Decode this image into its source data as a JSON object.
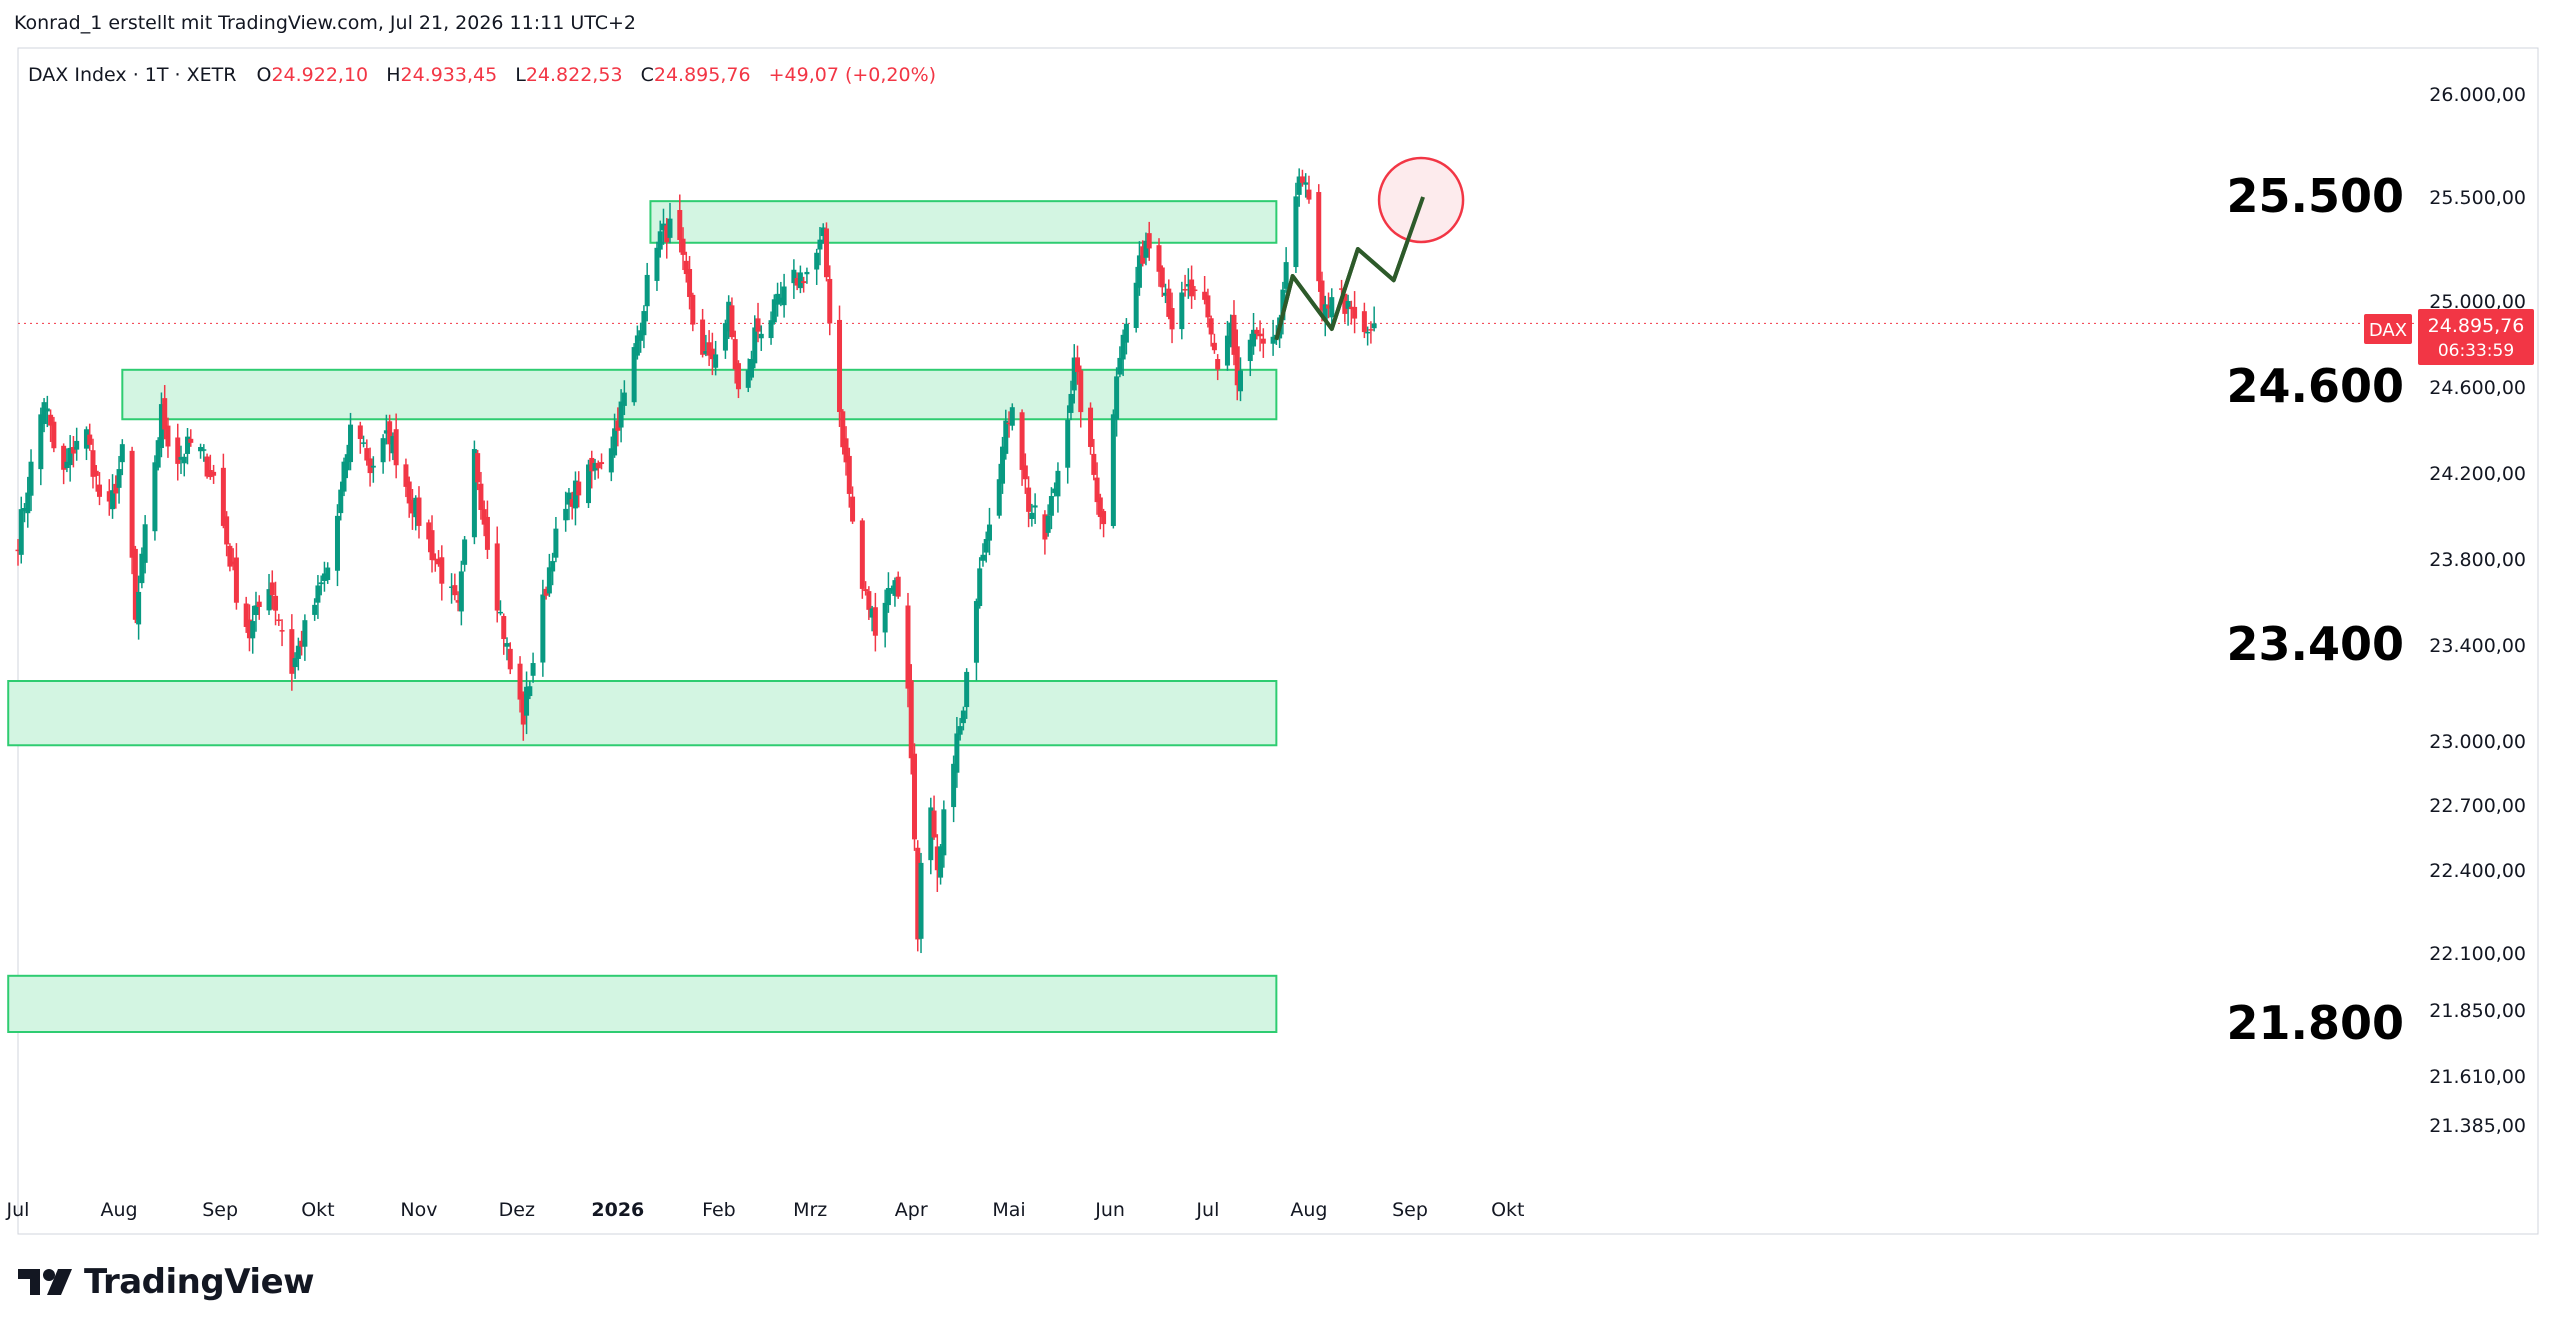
{
  "credit": "Konrad_1 erstellt mit TradingView.com, Jul 21, 2026 11:11 UTC+2",
  "brand": "TradingView",
  "legend": {
    "symbol": "DAX Index · 1T · XETR",
    "o_label": "O",
    "o": "24.922,10",
    "h_label": "H",
    "h": "24.933,45",
    "l_label": "L",
    "l": "24.822,53",
    "c_label": "C",
    "c": "24.895,76",
    "change": "+49,07 (+0,20%)"
  },
  "price_tag": {
    "symbol": "DAX",
    "price": "24.895,76",
    "countdown": "06:33:59"
  },
  "colors": {
    "up": "#089981",
    "down": "#f23645",
    "zone_fill": "#d3f5e2",
    "zone_stroke": "#2ecc71",
    "path": "#2d5a2a",
    "circle": "#f23645",
    "circle_fill": "#fde6e8"
  },
  "chart_data": {
    "type": "candlestick",
    "y_axis_ticks": [
      {
        "value": 26000,
        "label": "26.000,00"
      },
      {
        "value": 25500,
        "label": "25.500,00"
      },
      {
        "value": 25000,
        "label": "25.000,00"
      },
      {
        "value": 24600,
        "label": "24.600,00"
      },
      {
        "value": 24200,
        "label": "24.200,00"
      },
      {
        "value": 23800,
        "label": "23.800,00"
      },
      {
        "value": 23400,
        "label": "23.400,00"
      },
      {
        "value": 23000,
        "label": "23.000,00"
      },
      {
        "value": 22700,
        "label": "22.700,00"
      },
      {
        "value": 22400,
        "label": "22.400,00"
      },
      {
        "value": 22100,
        "label": "22.100,00"
      },
      {
        "value": 21850,
        "label": "21.850,00"
      },
      {
        "value": 21610,
        "label": "21.610,00"
      },
      {
        "value": 21385,
        "label": "21.385,00"
      }
    ],
    "x_axis_labels": [
      {
        "label": "Jul",
        "day": 0
      },
      {
        "label": "Aug",
        "day": 31
      },
      {
        "label": "Sep",
        "day": 62
      },
      {
        "label": "Okt",
        "day": 92
      },
      {
        "label": "Nov",
        "day": 123
      },
      {
        "label": "Dez",
        "day": 153
      },
      {
        "label": "2026",
        "day": 184,
        "bold": true
      },
      {
        "label": "Feb",
        "day": 215
      },
      {
        "label": "Mrz",
        "day": 243
      },
      {
        "label": "Apr",
        "day": 274
      },
      {
        "label": "Mai",
        "day": 304
      },
      {
        "label": "Jun",
        "day": 335
      },
      {
        "label": "Jul",
        "day": 365
      },
      {
        "label": "Aug",
        "day": 396
      },
      {
        "label": "Sep",
        "day": 427
      },
      {
        "label": "Okt",
        "day": 457
      }
    ],
    "zones": [
      {
        "from_day": 194,
        "to_day": 386,
        "low": 25280,
        "high": 25480
      },
      {
        "from_day": 32,
        "to_day": 386,
        "low": 24450,
        "high": 24680
      },
      {
        "from_day": -3,
        "to_day": 386,
        "low": 22980,
        "high": 23250
      },
      {
        "from_day": -3,
        "to_day": 386,
        "low": 21770,
        "high": 22000
      }
    ],
    "level_labels": [
      {
        "text": "25.500",
        "value": 25500
      },
      {
        "text": "24.600",
        "value": 24600
      },
      {
        "text": "23.400",
        "value": 23400
      },
      {
        "text": "21.800",
        "value": 21800
      }
    ],
    "projection": [
      {
        "day": 386,
        "value": 24820
      },
      {
        "day": 391,
        "value": 25120
      },
      {
        "day": 403,
        "value": 24870
      },
      {
        "day": 411,
        "value": 25250
      },
      {
        "day": 422,
        "value": 25100
      },
      {
        "day": 431,
        "value": 25500
      }
    ],
    "target": {
      "day": 431,
      "value": 25500
    },
    "current": 24895.76,
    "waypoints": [
      [
        0,
        23900
      ],
      [
        8,
        24550
      ],
      [
        13,
        24150
      ],
      [
        20,
        24450
      ],
      [
        27,
        23950
      ],
      [
        33,
        24350
      ],
      [
        36,
        23500
      ],
      [
        40,
        24050
      ],
      [
        44,
        24480
      ],
      [
        48,
        24250
      ],
      [
        54,
        24350
      ],
      [
        60,
        24180
      ],
      [
        67,
        23650
      ],
      [
        71,
        23450
      ],
      [
        77,
        23700
      ],
      [
        84,
        23300
      ],
      [
        90,
        23550
      ],
      [
        96,
        23800
      ],
      [
        103,
        24500
      ],
      [
        108,
        24220
      ],
      [
        114,
        24380
      ],
      [
        120,
        24100
      ],
      [
        128,
        23800
      ],
      [
        135,
        23550
      ],
      [
        140,
        24280
      ],
      [
        146,
        23700
      ],
      [
        151,
        23300
      ],
      [
        155,
        23100
      ],
      [
        160,
        23500
      ],
      [
        164,
        23850
      ],
      [
        170,
        24100
      ],
      [
        176,
        24200
      ],
      [
        182,
        24350
      ],
      [
        187,
        24600
      ],
      [
        192,
        25000
      ],
      [
        196,
        25300
      ],
      [
        200,
        25350
      ],
      [
        203,
        25250
      ],
      [
        207,
        24900
      ],
      [
        212,
        24700
      ],
      [
        218,
        24950
      ],
      [
        222,
        24450
      ],
      [
        226,
        24850
      ],
      [
        232,
        24950
      ],
      [
        238,
        25100
      ],
      [
        243,
        25150
      ],
      [
        247,
        25300
      ],
      [
        250,
        24750
      ],
      [
        255,
        24100
      ],
      [
        258,
        23700
      ],
      [
        263,
        23500
      ],
      [
        268,
        23700
      ],
      [
        272,
        23600
      ],
      [
        276,
        22200
      ],
      [
        279,
        22800
      ],
      [
        282,
        22350
      ],
      [
        286,
        22900
      ],
      [
        290,
        23100
      ],
      [
        295,
        23800
      ],
      [
        300,
        24150
      ],
      [
        305,
        24550
      ],
      [
        310,
        24050
      ],
      [
        315,
        23900
      ],
      [
        320,
        24300
      ],
      [
        324,
        24700
      ],
      [
        328,
        24350
      ],
      [
        333,
        23950
      ],
      [
        337,
        24700
      ],
      [
        341,
        24950
      ],
      [
        346,
        25300
      ],
      [
        350,
        25200
      ],
      [
        354,
        24900
      ],
      [
        359,
        25050
      ],
      [
        364,
        24950
      ],
      [
        368,
        24700
      ],
      [
        372,
        24900
      ],
      [
        374,
        24600
      ],
      [
        379,
        24850
      ],
      [
        384,
        24700
      ],
      [
        388,
        25000
      ],
      [
        393,
        25650
      ],
      [
        397,
        25400
      ],
      [
        400,
        24900
      ],
      [
        404,
        25100
      ],
      [
        408,
        24950
      ],
      [
        413,
        24830
      ],
      [
        416,
        24895.76
      ]
    ]
  }
}
